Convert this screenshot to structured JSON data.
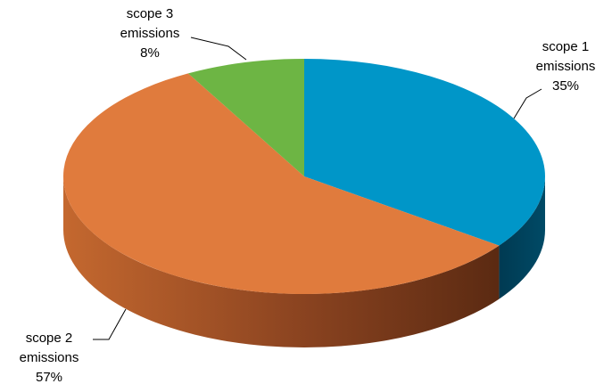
{
  "chart_data": {
    "type": "pie",
    "style": "3d",
    "title": "",
    "categories": [
      "scope 1 emissions",
      "scope 2 emissions",
      "scope 3 emissions"
    ],
    "series": [
      {
        "values": [
          35,
          57,
          8
        ],
        "labels": [
          {
            "line1": "scope 1",
            "line2": "emissions",
            "pct": "35%"
          },
          {
            "line1": "scope 2",
            "line2": "emissions",
            "pct": "57%"
          },
          {
            "line1": "scope 3",
            "line2": "emissions",
            "pct": "8%"
          }
        ],
        "colors": [
          "#0096c8",
          "#e07b3d",
          "#6db544"
        ]
      }
    ],
    "legend": "none"
  }
}
